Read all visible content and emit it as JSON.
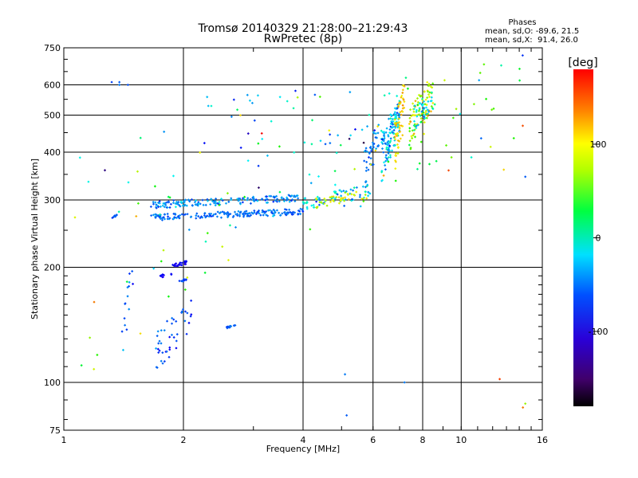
{
  "chart_data": {
    "type": "scatter",
    "title": "Tromsø 20140329 21:28:00–21:29:43",
    "subtitle": "RwPretec (8p)",
    "stats": {
      "heading": "Phases",
      "line1": "mean, sd,O: -89.6, 21.5",
      "line2": "mean, sd,X:  91.4, 26.0"
    },
    "xlabel": "Frequency [MHz]",
    "ylabel": "Stationary phase Virtual Height [km]",
    "xscale": "log",
    "yscale": "log",
    "xlim": [
      1,
      16
    ],
    "ylim": [
      75,
      750
    ],
    "xticks": [
      1,
      2,
      4,
      6,
      8,
      10,
      16
    ],
    "xtick_labels": [
      "1",
      "2",
      "4",
      "6",
      "8",
      "10",
      "16"
    ],
    "yticks": [
      75,
      100,
      200,
      300,
      400,
      500,
      600,
      750
    ],
    "ytick_labels": [
      "75",
      "100",
      "200",
      "300",
      "400",
      "500",
      "600",
      "750"
    ],
    "grid": true,
    "colorbar": {
      "label": "[deg]",
      "range": [
        -180,
        180
      ],
      "ticks": [
        100,
        0,
        -100
      ],
      "tick_labels": [
        "100",
        "0",
        "-100"
      ]
    },
    "clusters": [
      {
        "x0": 1.65,
        "x1": 4.0,
        "h0": 265,
        "h1": 285,
        "n": 180,
        "phase": -105,
        "sd": 15
      },
      {
        "x0": 1.65,
        "x1": 3.9,
        "h0": 285,
        "h1": 310,
        "n": 160,
        "phase": -95,
        "sd": 25
      },
      {
        "x0": 4.0,
        "x1": 5.9,
        "h0": 280,
        "h1": 330,
        "n": 70,
        "phase": -70,
        "sd": 40
      },
      {
        "x0": 4.3,
        "x1": 5.8,
        "h0": 285,
        "h1": 320,
        "n": 40,
        "phase": 90,
        "sd": 25
      },
      {
        "x0": 5.7,
        "x1": 6.2,
        "h0": 320,
        "h1": 480,
        "n": 40,
        "phase": -100,
        "sd": 20
      },
      {
        "x0": 6.3,
        "x1": 7.0,
        "h0": 330,
        "h1": 560,
        "n": 120,
        "phase": -80,
        "sd": 40
      },
      {
        "x0": 6.8,
        "x1": 7.2,
        "h0": 350,
        "h1": 620,
        "n": 60,
        "phase": 110,
        "sd": 20
      },
      {
        "x0": 7.4,
        "x1": 8.5,
        "h0": 400,
        "h1": 640,
        "n": 80,
        "phase": 80,
        "sd": 40
      },
      {
        "x0": 7.6,
        "x1": 8.6,
        "h0": 450,
        "h1": 600,
        "n": 40,
        "phase": -60,
        "sd": 40
      },
      {
        "x0": 1.88,
        "x1": 2.05,
        "h0": 200,
        "h1": 208,
        "n": 25,
        "phase": -145,
        "sd": 8
      },
      {
        "x0": 1.75,
        "x1": 1.88,
        "h0": 188,
        "h1": 194,
        "n": 10,
        "phase": -145,
        "sd": 8
      },
      {
        "x0": 1.95,
        "x1": 2.05,
        "h0": 182,
        "h1": 188,
        "n": 10,
        "phase": -120,
        "sd": 10
      },
      {
        "x0": 2.55,
        "x1": 2.7,
        "h0": 138,
        "h1": 142,
        "n": 12,
        "phase": -110,
        "sd": 15
      },
      {
        "x0": 1.7,
        "x1": 2.1,
        "h0": 105,
        "h1": 165,
        "n": 45,
        "phase": -110,
        "sd": 30
      },
      {
        "x0": 1.32,
        "x1": 1.36,
        "h0": 268,
        "h1": 275,
        "n": 8,
        "phase": -115,
        "sd": 10
      },
      {
        "x0": 1.4,
        "x1": 1.5,
        "h0": 115,
        "h1": 210,
        "n": 15,
        "phase": -110,
        "sd": 30
      },
      {
        "x0": 2.1,
        "x1": 6.5,
        "h0": 520,
        "h1": 600,
        "n": 12,
        "phase": -100,
        "sd": 50
      },
      {
        "x0": 4.2,
        "x1": 6.0,
        "h0": 400,
        "h1": 500,
        "n": 10,
        "phase": -100,
        "sd": 50
      },
      {
        "x0": 1.05,
        "x1": 14.5,
        "h0": 80,
        "h1": 720,
        "n": 130,
        "phase": 0,
        "sd": 120
      }
    ],
    "points": [
      {
        "x": 1.32,
        "y": 610,
        "phase": -120
      },
      {
        "x": 1.38,
        "y": 610,
        "phase": -110
      },
      {
        "x": 1.38,
        "y": 600,
        "phase": -100
      },
      {
        "x": 1.45,
        "y": 600,
        "phase": -115
      },
      {
        "x": 5.15,
        "y": 82,
        "phase": -110
      },
      {
        "x": 5.1,
        "y": 105,
        "phase": -100
      },
      {
        "x": 7.2,
        "y": 100,
        "phase": -100
      },
      {
        "x": 14.5,
        "y": 88,
        "phase": 70
      },
      {
        "x": 14.3,
        "y": 86,
        "phase": 140
      },
      {
        "x": 12.5,
        "y": 102,
        "phase": 160
      },
      {
        "x": 12.8,
        "y": 360,
        "phase": 110
      },
      {
        "x": 14.5,
        "y": 345,
        "phase": -110
      }
    ]
  }
}
